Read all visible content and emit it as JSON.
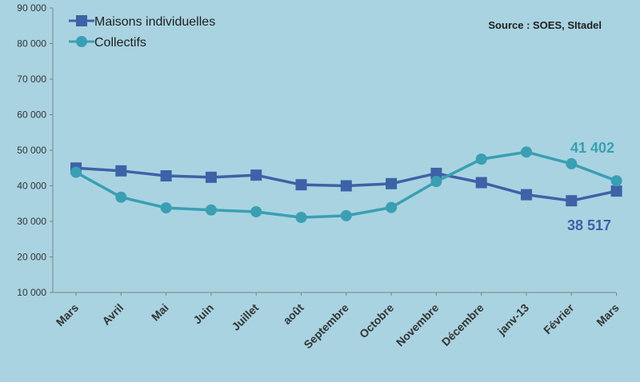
{
  "chart_data": {
    "type": "line",
    "title": "",
    "xlabel": "",
    "ylabel": "",
    "ylim": [
      10000,
      90000
    ],
    "yticks": [
      10000,
      20000,
      30000,
      40000,
      50000,
      60000,
      70000,
      80000,
      90000
    ],
    "ytick_labels": [
      "10 000",
      "20 000",
      "30 000",
      "40 000",
      "50 000",
      "60 000",
      "70 000",
      "80 000",
      "90 000"
    ],
    "categories": [
      "Mars",
      "Avril",
      "Mai",
      "Juin",
      "Juillet",
      "août",
      "Septembre",
      "Octobre",
      "Novembre",
      "Décembre",
      "janv-13",
      "Février",
      "Mars"
    ],
    "series": [
      {
        "name": "Maisons individuelles",
        "color": "#3d62a6",
        "marker": "square",
        "values": [
          45000,
          44200,
          42800,
          42400,
          43000,
          40300,
          40000,
          40600,
          43500,
          40900,
          37500,
          35800,
          38517
        ]
      },
      {
        "name": "Collectifs",
        "color": "#3a9fb3",
        "marker": "circle",
        "values": [
          43800,
          36800,
          33800,
          33200,
          32700,
          31100,
          31600,
          33900,
          41200,
          47500,
          49500,
          46200,
          41402
        ]
      }
    ],
    "source": "Source : SOES, SItadel",
    "annotations": [
      {
        "text": "41 402",
        "series": "Collectifs",
        "color": "#3a9fb3"
      },
      {
        "text": "38 517",
        "series": "Maisons individuelles",
        "color": "#3d62a6"
      }
    ],
    "legend_position": "top-left",
    "grid": false
  }
}
